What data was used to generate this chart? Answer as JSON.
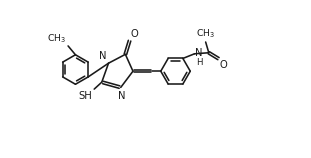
{
  "bg_color": "#ffffff",
  "line_color": "#1a1a1a",
  "line_width": 1.15,
  "font_size": 7.2,
  "fig_width": 3.11,
  "fig_height": 1.58,
  "dpi": 100,
  "xlim": [
    0,
    11.5
  ],
  "ylim": [
    1.5,
    9.0
  ]
}
